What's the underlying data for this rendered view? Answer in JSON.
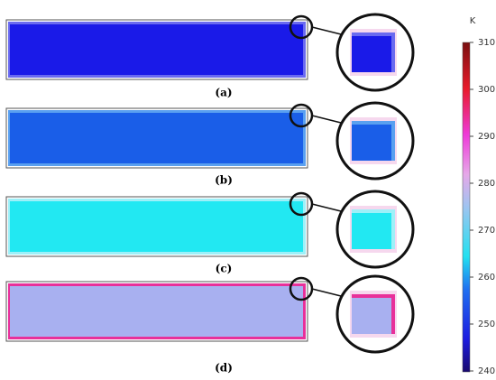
{
  "panels": [
    "(a)",
    "(b)",
    "(c)",
    "(d)"
  ],
  "colorbar": {
    "unit": "K",
    "lim": [
      240,
      310
    ],
    "ticks": [
      240,
      250,
      260,
      270,
      280,
      290,
      300,
      310
    ]
  }
}
